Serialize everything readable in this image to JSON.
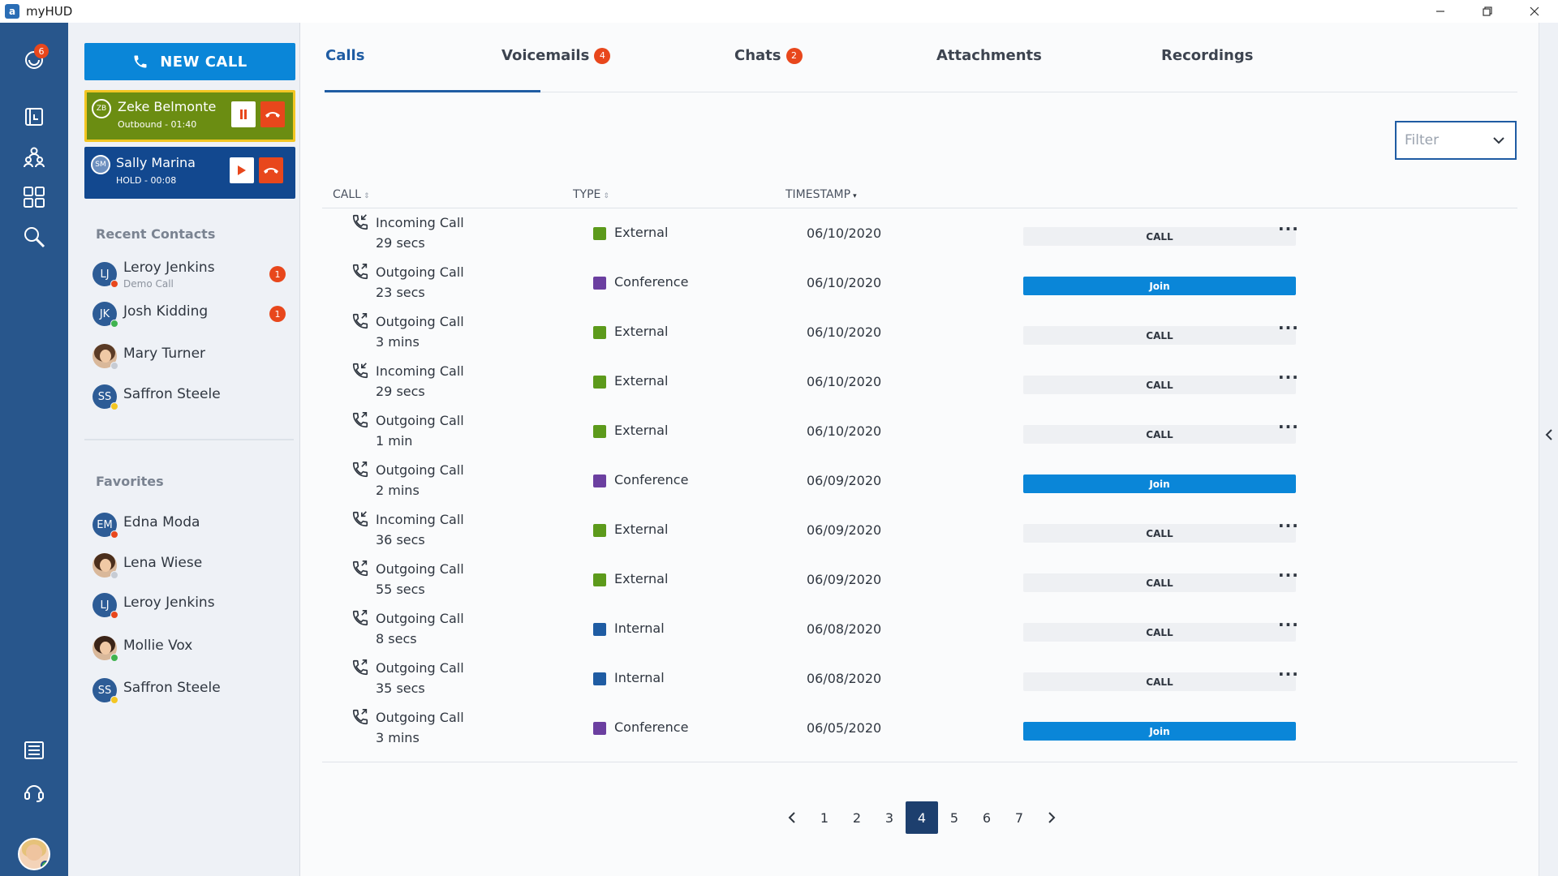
{
  "window": {
    "title": "myHUD",
    "logo_letter": "a"
  },
  "rail": {
    "badge_count": "6"
  },
  "sidebar": {
    "new_call_label": "NEW CALL",
    "active_calls": [
      {
        "initials": "ZB",
        "name": "Zeke Belmonte",
        "status": "Outbound - 01:40"
      },
      {
        "initials": "SM",
        "name": "Sally Marina",
        "status": "HOLD - 00:08"
      }
    ],
    "recent_title": "Recent Contacts",
    "recent": [
      {
        "initials": "LJ",
        "name": "Leroy Jenkins",
        "sub": "Demo Call",
        "badge": "1",
        "status_color": "#e8471c"
      },
      {
        "initials": "JK",
        "name": "Josh Kidding",
        "badge": "1",
        "status_color": "#3fb34f"
      },
      {
        "initials": "",
        "name": "Mary Turner",
        "status_color": "#c7ccd4"
      },
      {
        "initials": "SS",
        "name": "Saffron Steele",
        "status_color": "#f3c623"
      }
    ],
    "favorites_title": "Favorites",
    "favorites": [
      {
        "initials": "EM",
        "name": "Edna Moda",
        "status_color": "#e8471c"
      },
      {
        "initials": "",
        "name": "Lena Wiese",
        "status_color": "#c7ccd4"
      },
      {
        "initials": "LJ",
        "name": "Leroy Jenkins",
        "status_color": "#e8471c"
      },
      {
        "initials": "",
        "name": "Mollie Vox",
        "status_color": "#3fb34f"
      },
      {
        "initials": "SS",
        "name": "Saffron Steele",
        "status_color": "#f3c623"
      }
    ]
  },
  "tabs": [
    {
      "label": "Calls",
      "badge": ""
    },
    {
      "label": "Voicemails",
      "badge": "4"
    },
    {
      "label": "Chats",
      "badge": "2"
    },
    {
      "label": "Attachments",
      "badge": ""
    },
    {
      "label": "Recordings",
      "badge": ""
    }
  ],
  "filter": {
    "placeholder": "Filter"
  },
  "table": {
    "headers": {
      "call": "CALL",
      "type": "TYPE",
      "timestamp": "TIMESTAMP"
    },
    "rows": [
      {
        "direction": "incoming",
        "call": "Incoming Call",
        "duration": "29 secs",
        "type": "External",
        "type_color": "#5c9a1b",
        "timestamp": "06/10/2020",
        "action": "CALL",
        "more": true
      },
      {
        "direction": "outgoing",
        "call": "Outgoing Call",
        "duration": "23 secs",
        "type": "Conference",
        "type_color": "#6b3fa0",
        "timestamp": "06/10/2020",
        "action": "Join",
        "more": false
      },
      {
        "direction": "outgoing",
        "call": "Outgoing Call",
        "duration": "3 mins",
        "type": "External",
        "type_color": "#5c9a1b",
        "timestamp": "06/10/2020",
        "action": "CALL",
        "more": true
      },
      {
        "direction": "incoming",
        "call": "Incoming Call",
        "duration": "29 secs",
        "type": "External",
        "type_color": "#5c9a1b",
        "timestamp": "06/10/2020",
        "action": "CALL",
        "more": true
      },
      {
        "direction": "outgoing",
        "call": "Outgoing Call",
        "duration": "1 min",
        "type": "External",
        "type_color": "#5c9a1b",
        "timestamp": "06/10/2020",
        "action": "CALL",
        "more": true
      },
      {
        "direction": "outgoing",
        "call": "Outgoing Call",
        "duration": "2 mins",
        "type": "Conference",
        "type_color": "#6b3fa0",
        "timestamp": "06/09/2020",
        "action": "Join",
        "more": false
      },
      {
        "direction": "incoming",
        "call": "Incoming Call",
        "duration": "36 secs",
        "type": "External",
        "type_color": "#5c9a1b",
        "timestamp": "06/09/2020",
        "action": "CALL",
        "more": true
      },
      {
        "direction": "outgoing",
        "call": "Outgoing Call",
        "duration": "55 secs",
        "type": "External",
        "type_color": "#5c9a1b",
        "timestamp": "06/09/2020",
        "action": "CALL",
        "more": true
      },
      {
        "direction": "outgoing",
        "call": "Outgoing Call",
        "duration": "8 secs",
        "type": "Internal",
        "type_color": "#1f5ca3",
        "timestamp": "06/08/2020",
        "action": "CALL",
        "more": true
      },
      {
        "direction": "outgoing",
        "call": "Outgoing Call",
        "duration": "35 secs",
        "type": "Internal",
        "type_color": "#1f5ca3",
        "timestamp": "06/08/2020",
        "action": "CALL",
        "more": true
      },
      {
        "direction": "outgoing",
        "call": "Outgoing Call",
        "duration": "3 mins",
        "type": "Conference",
        "type_color": "#6b3fa0",
        "timestamp": "06/05/2020",
        "action": "Join",
        "more": false
      }
    ]
  },
  "pagination": {
    "pages": [
      "1",
      "2",
      "3",
      "4",
      "5",
      "6",
      "7"
    ],
    "current": "4"
  }
}
